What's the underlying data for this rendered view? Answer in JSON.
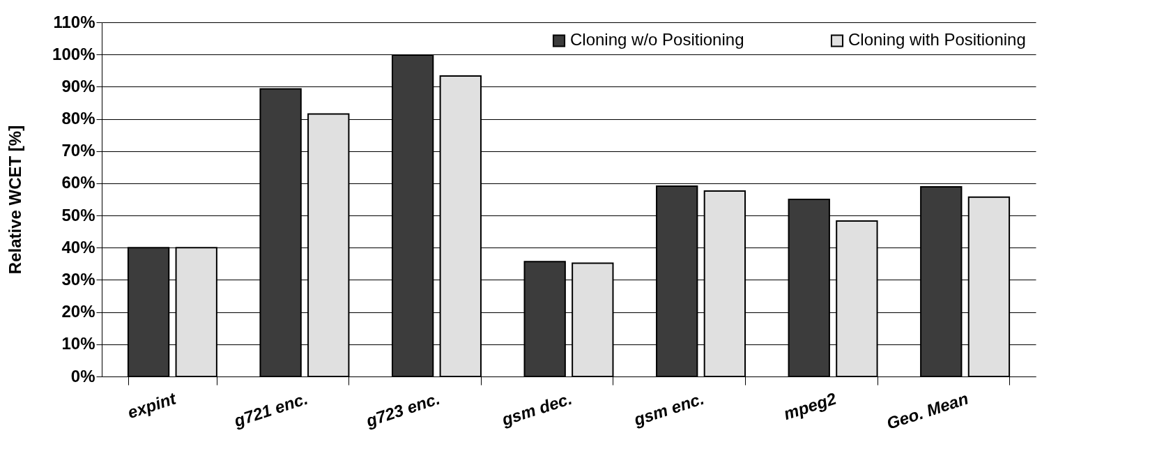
{
  "chart_data": {
    "type": "bar",
    "ylabel": "Relative WCET [%]",
    "categories": [
      "expint",
      "g721 enc.",
      "g723 enc.",
      "gsm dec.",
      "gsm enc.",
      "mpeg2",
      "Geo. Mean"
    ],
    "series": [
      {
        "name": "Cloning w/o Positioning",
        "color": "#3c3c3c",
        "values": [
          40,
          89.3,
          99.8,
          35.7,
          59.1,
          55,
          58.9
        ]
      },
      {
        "name": "Cloning with Positioning",
        "color": "#e0e0e0",
        "values": [
          40,
          81.5,
          93.3,
          35.2,
          57.6,
          48.3,
          55.7
        ]
      }
    ],
    "ylim": [
      0,
      110
    ],
    "yticks": [
      {
        "value": 0,
        "label": "0%"
      },
      {
        "value": 10,
        "label": "10%"
      },
      {
        "value": 20,
        "label": "20%"
      },
      {
        "value": 30,
        "label": "30%"
      },
      {
        "value": 40,
        "label": "40%"
      },
      {
        "value": 50,
        "label": "50%"
      },
      {
        "value": 60,
        "label": "60%"
      },
      {
        "value": 70,
        "label": "70%"
      },
      {
        "value": 80,
        "label": "80%"
      },
      {
        "value": 90,
        "label": "90%"
      },
      {
        "value": 100,
        "label": "100%"
      },
      {
        "value": 110,
        "label": "110%"
      }
    ],
    "grid": "y",
    "legend": "top right"
  }
}
